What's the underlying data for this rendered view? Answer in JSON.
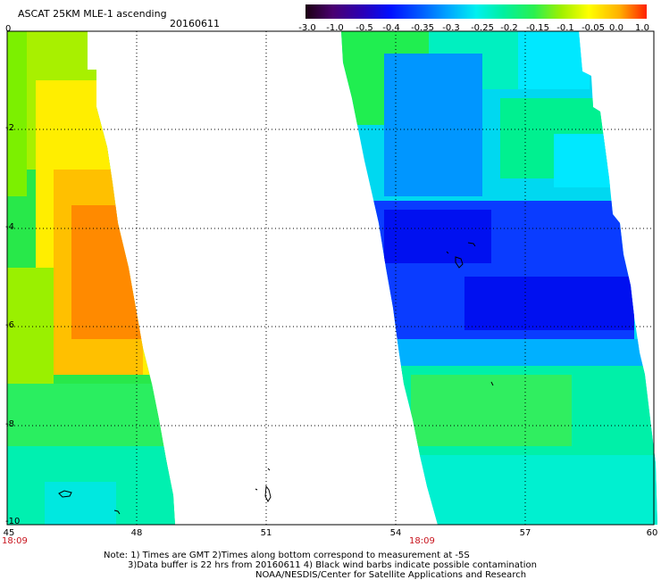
{
  "header": {
    "title": "ASCAT 25KM MLE-1 ascending",
    "date": "20160611"
  },
  "colorbar": {
    "labels": [
      "-3.0",
      "-1.0",
      "-0.5",
      "-0.4",
      "-0.35",
      "-0.3",
      "-0.25",
      "-0.2",
      "-0.15",
      "-0.1",
      "-0.05",
      "0.0",
      "1.0"
    ],
    "colors": [
      "#1b0011",
      "#4a0070",
      "#2a00b8",
      "#0010ff",
      "#0055ff",
      "#00a8ff",
      "#00f0f0",
      "#00f0a0",
      "#2af050",
      "#a0f000",
      "#ffff00",
      "#ffb000",
      "#ff2000"
    ]
  },
  "axes": {
    "y_ticks": [
      "0",
      "-2",
      "-4",
      "-6",
      "-8",
      "-10"
    ],
    "x_ticks": [
      "45",
      "48",
      "51",
      "54",
      "57",
      "60"
    ]
  },
  "pass_times": [
    "18:09",
    "18:09"
  ],
  "footer": {
    "line1": "Note: 1) Times are GMT 2)Times along bottom correspond to measurement at -5S",
    "line2": "3)Data buffer is 22 hrs from 20160611 4) Black wind barbs indicate possible contamination",
    "line3": "NOAA/NESDIS/Center for Satellite Applications and Research"
  }
}
